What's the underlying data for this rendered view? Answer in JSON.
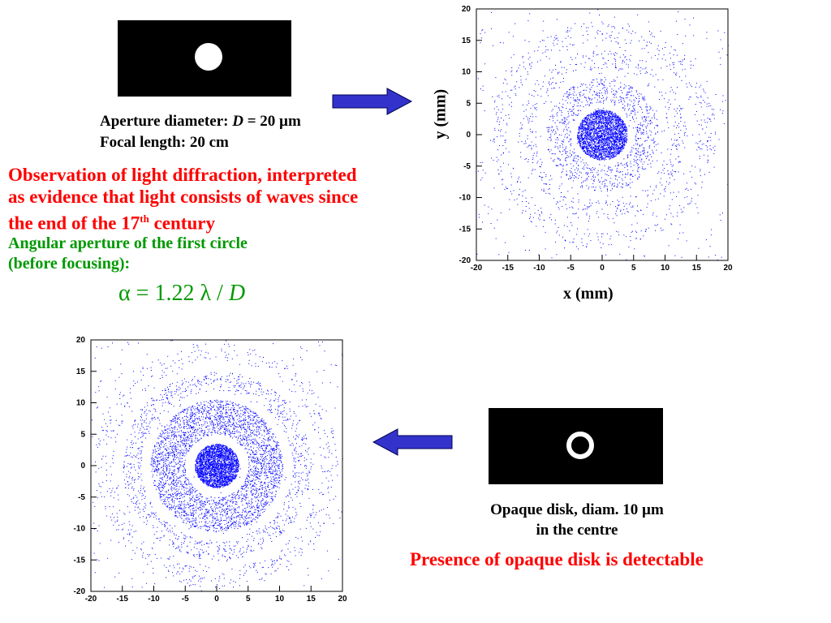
{
  "slide": {
    "aperture_label_prefix": "Aperture diameter: ",
    "aperture_symbol": "D",
    "aperture_value": " = 20 µm",
    "focal_length": "Focal length: 20 cm",
    "observation_line1": "Observation of light diffraction, interpreted",
    "observation_line2": "as evidence that light consists of waves since",
    "observation_line3_prefix": "the end of the 17",
    "observation_sup": "th",
    "observation_line3_suffix": " century",
    "angular_line1": "Angular aperture of the first circle",
    "angular_line2": "(before focusing):",
    "formula_prefix": "α = 1.22 λ / ",
    "formula_symbol": "D",
    "disk_caption_line1": "Opaque disk, diam. 10 µm",
    "disk_caption_line2": "in the centre",
    "presence": "Presence of opaque disk is detectable"
  },
  "plot_top": {
    "xlabel": "x (mm)",
    "ylabel": "y (mm)"
  },
  "colors": {
    "scatter": "#0000ff",
    "arrow_fill": "#3333cc",
    "red_text": "#ff0000",
    "green_text": "#009900"
  },
  "chart_data": [
    {
      "type": "scatter",
      "title": "",
      "xlabel": "x (mm)",
      "ylabel": "y (mm)",
      "xlim": [
        -20,
        20
      ],
      "ylim": [
        -20,
        20
      ],
      "x_ticks": [
        -20,
        -15,
        -10,
        -5,
        0,
        5,
        10,
        15,
        20
      ],
      "y_ticks": [
        -20,
        -15,
        -10,
        -5,
        0,
        5,
        10,
        15,
        20
      ],
      "pattern": "Airy diffraction pattern of a circular aperture: dense central disk with faint concentric rings",
      "series": [
        {
          "name": "",
          "rings": [
            {
              "r_min": 0,
              "r_max": 4,
              "density": "very high"
            },
            {
              "r_min": 5,
              "r_max": 9,
              "density": "low"
            },
            {
              "r_min": 10.5,
              "r_max": 13.5,
              "density": "faint"
            },
            {
              "r_min": 15,
              "r_max": 18,
              "density": "faint"
            }
          ]
        }
      ]
    },
    {
      "type": "scatter",
      "title": "",
      "xlabel": "",
      "ylabel": "",
      "xlim": [
        -20,
        20
      ],
      "ylim": [
        -20,
        20
      ],
      "x_ticks": [
        -20,
        -15,
        -10,
        -5,
        0,
        5,
        10,
        15,
        20
      ],
      "y_ticks": [
        -20,
        -15,
        -10,
        -5,
        0,
        5,
        10,
        15,
        20
      ],
      "pattern": "Diffraction pattern with an opaque disk in the centre: bright central spot, dark ring, then strong bright ring",
      "series": [
        {
          "name": "",
          "rings": [
            {
              "r_min": 0,
              "r_max": 3.5,
              "density": "very high"
            },
            {
              "r_min": 5,
              "r_max": 10.5,
              "density": "high"
            },
            {
              "r_min": 12,
              "r_max": 15,
              "density": "low"
            },
            {
              "r_min": 16.5,
              "r_max": 19.5,
              "density": "faint"
            }
          ]
        }
      ]
    }
  ]
}
